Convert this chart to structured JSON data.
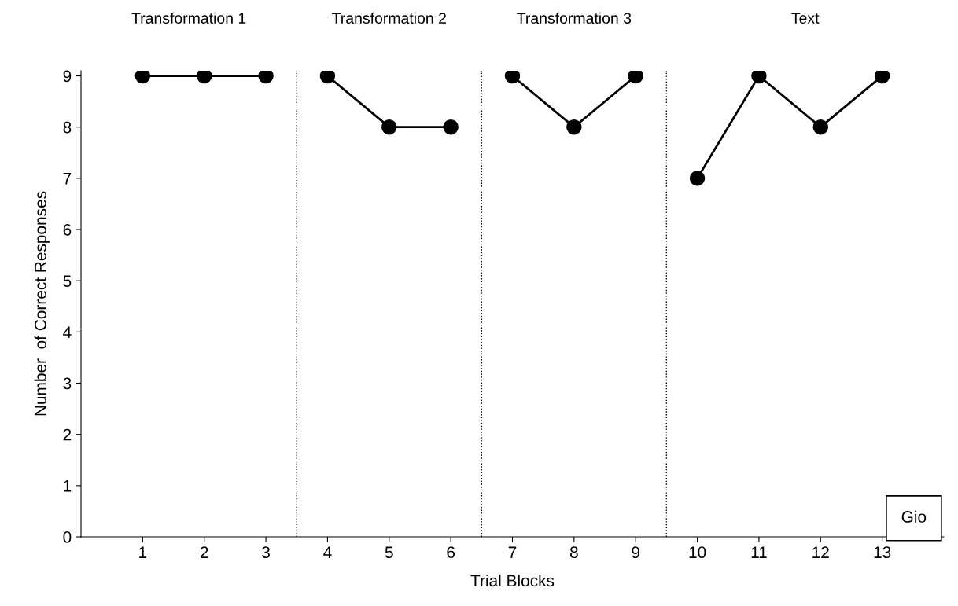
{
  "chart_data": {
    "type": "line",
    "xlabel": "Trial Blocks",
    "ylabel": "Number  of Correct Responses",
    "xlim": [
      0,
      14
    ],
    "xticks": [
      1,
      2,
      3,
      4,
      5,
      6,
      7,
      8,
      9,
      10,
      11,
      12,
      13
    ],
    "ylim": [
      0,
      9.1
    ],
    "yticks": [
      0,
      1,
      2,
      3,
      4,
      5,
      6,
      7,
      8,
      9
    ],
    "series": [
      {
        "color": "#000000",
        "x": [
          1,
          2,
          3
        ],
        "values": [
          9,
          9,
          9
        ]
      },
      {
        "color": "#000000",
        "x": [
          4,
          5,
          6
        ],
        "values": [
          9,
          8,
          8
        ]
      },
      {
        "color": "#000000",
        "x": [
          7,
          8,
          9
        ],
        "values": [
          9,
          8,
          9
        ]
      },
      {
        "color": "#000000",
        "x": [
          10,
          11,
          12,
          13
        ],
        "values": [
          7,
          9,
          8,
          9
        ]
      }
    ],
    "ref_lines": [
      {
        "axis": "x",
        "value": 3.5,
        "color": "#000000",
        "line_style": "dotted"
      },
      {
        "axis": "x",
        "value": 6.5,
        "color": "#000000",
        "line_style": "dotted"
      },
      {
        "axis": "x",
        "value": 9.5,
        "color": "#000000",
        "line_style": "dotted"
      }
    ],
    "annotations": [
      "Transformation 1",
      "Transformation 2",
      "Transformation 3",
      "Text",
      "Gio"
    ],
    "marker": "circle",
    "line_style": "solid",
    "grid": false,
    "legend": false
  }
}
